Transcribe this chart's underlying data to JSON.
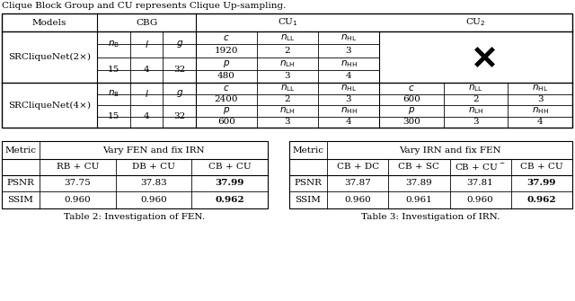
{
  "caption_top": "Clique Block Group and CU represents Clique Up-sampling.",
  "table2": {
    "title": "Vary FEN and fix IRN",
    "caption": "Table 2: Investigation of FEN.",
    "col_headers": [
      "Metric",
      "RB + CU",
      "DB + CU",
      "CB + CU"
    ],
    "rows": [
      [
        "PSNR",
        "37.75",
        "37.83",
        "37.99"
      ],
      [
        "SSIM",
        "0.960",
        "0.960",
        "0.962"
      ]
    ],
    "bold_col": 3
  },
  "table3": {
    "title": "Vary IRN and fix FEN",
    "caption": "Table 3: Investigation of IRN.",
    "col_headers": [
      "Metric",
      "CB + DC",
      "CB + SC",
      "CB + CU⁻",
      "CB + CU"
    ],
    "rows": [
      [
        "PSNR",
        "37.87",
        "37.89",
        "37.81",
        "37.99"
      ],
      [
        "SSIM",
        "0.960",
        "0.961",
        "0.960",
        "0.962"
      ]
    ],
    "bold_col": 4
  },
  "bg_color": "#ffffff",
  "font_size": 7.5
}
